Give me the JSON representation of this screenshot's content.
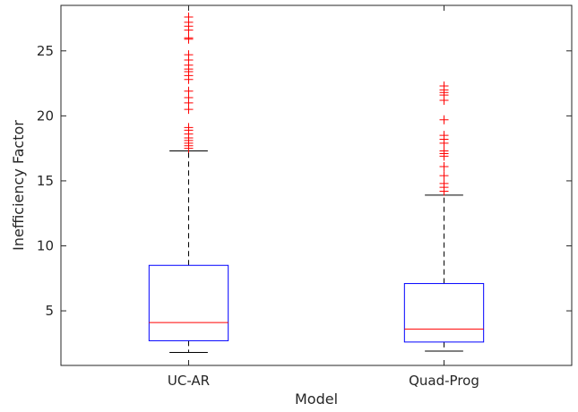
{
  "chart_data": {
    "type": "boxplot",
    "title": "",
    "xlabel": "Model",
    "ylabel": "Inefficiency Factor",
    "ylim": [
      0.8,
      28.5
    ],
    "yticks": [
      5,
      10,
      15,
      20,
      25
    ],
    "grid": false,
    "legend": "none",
    "colors": {
      "box": "#0000ff",
      "median": "#ff0000",
      "whisker": "#000000",
      "outlier": "#ff0000",
      "axis": "#262626"
    },
    "categories": [
      "UC-AR",
      "Quad-Prog"
    ],
    "boxes": [
      {
        "category": "UC-AR",
        "whisker_low": 1.8,
        "q1": 2.7,
        "median": 4.1,
        "q3": 8.5,
        "whisker_high": 17.3,
        "outliers": [
          17.5,
          17.7,
          17.9,
          18.1,
          18.3,
          18.6,
          18.9,
          19.1,
          20.5,
          21.0,
          21.4,
          21.9,
          22.8,
          23.1,
          23.4,
          23.6,
          23.9,
          24.3,
          24.7,
          25.9,
          26.0,
          26.6,
          26.9,
          27.2,
          27.6
        ]
      },
      {
        "category": "Quad-Prog",
        "whisker_low": 1.9,
        "q1": 2.6,
        "median": 3.6,
        "q3": 7.1,
        "whisker_high": 13.9,
        "outliers": [
          14.2,
          14.5,
          14.8,
          15.4,
          16.1,
          16.9,
          17.1,
          17.3,
          17.9,
          18.2,
          18.5,
          19.7,
          21.2,
          21.6,
          21.8,
          22.0,
          22.3
        ]
      }
    ]
  }
}
